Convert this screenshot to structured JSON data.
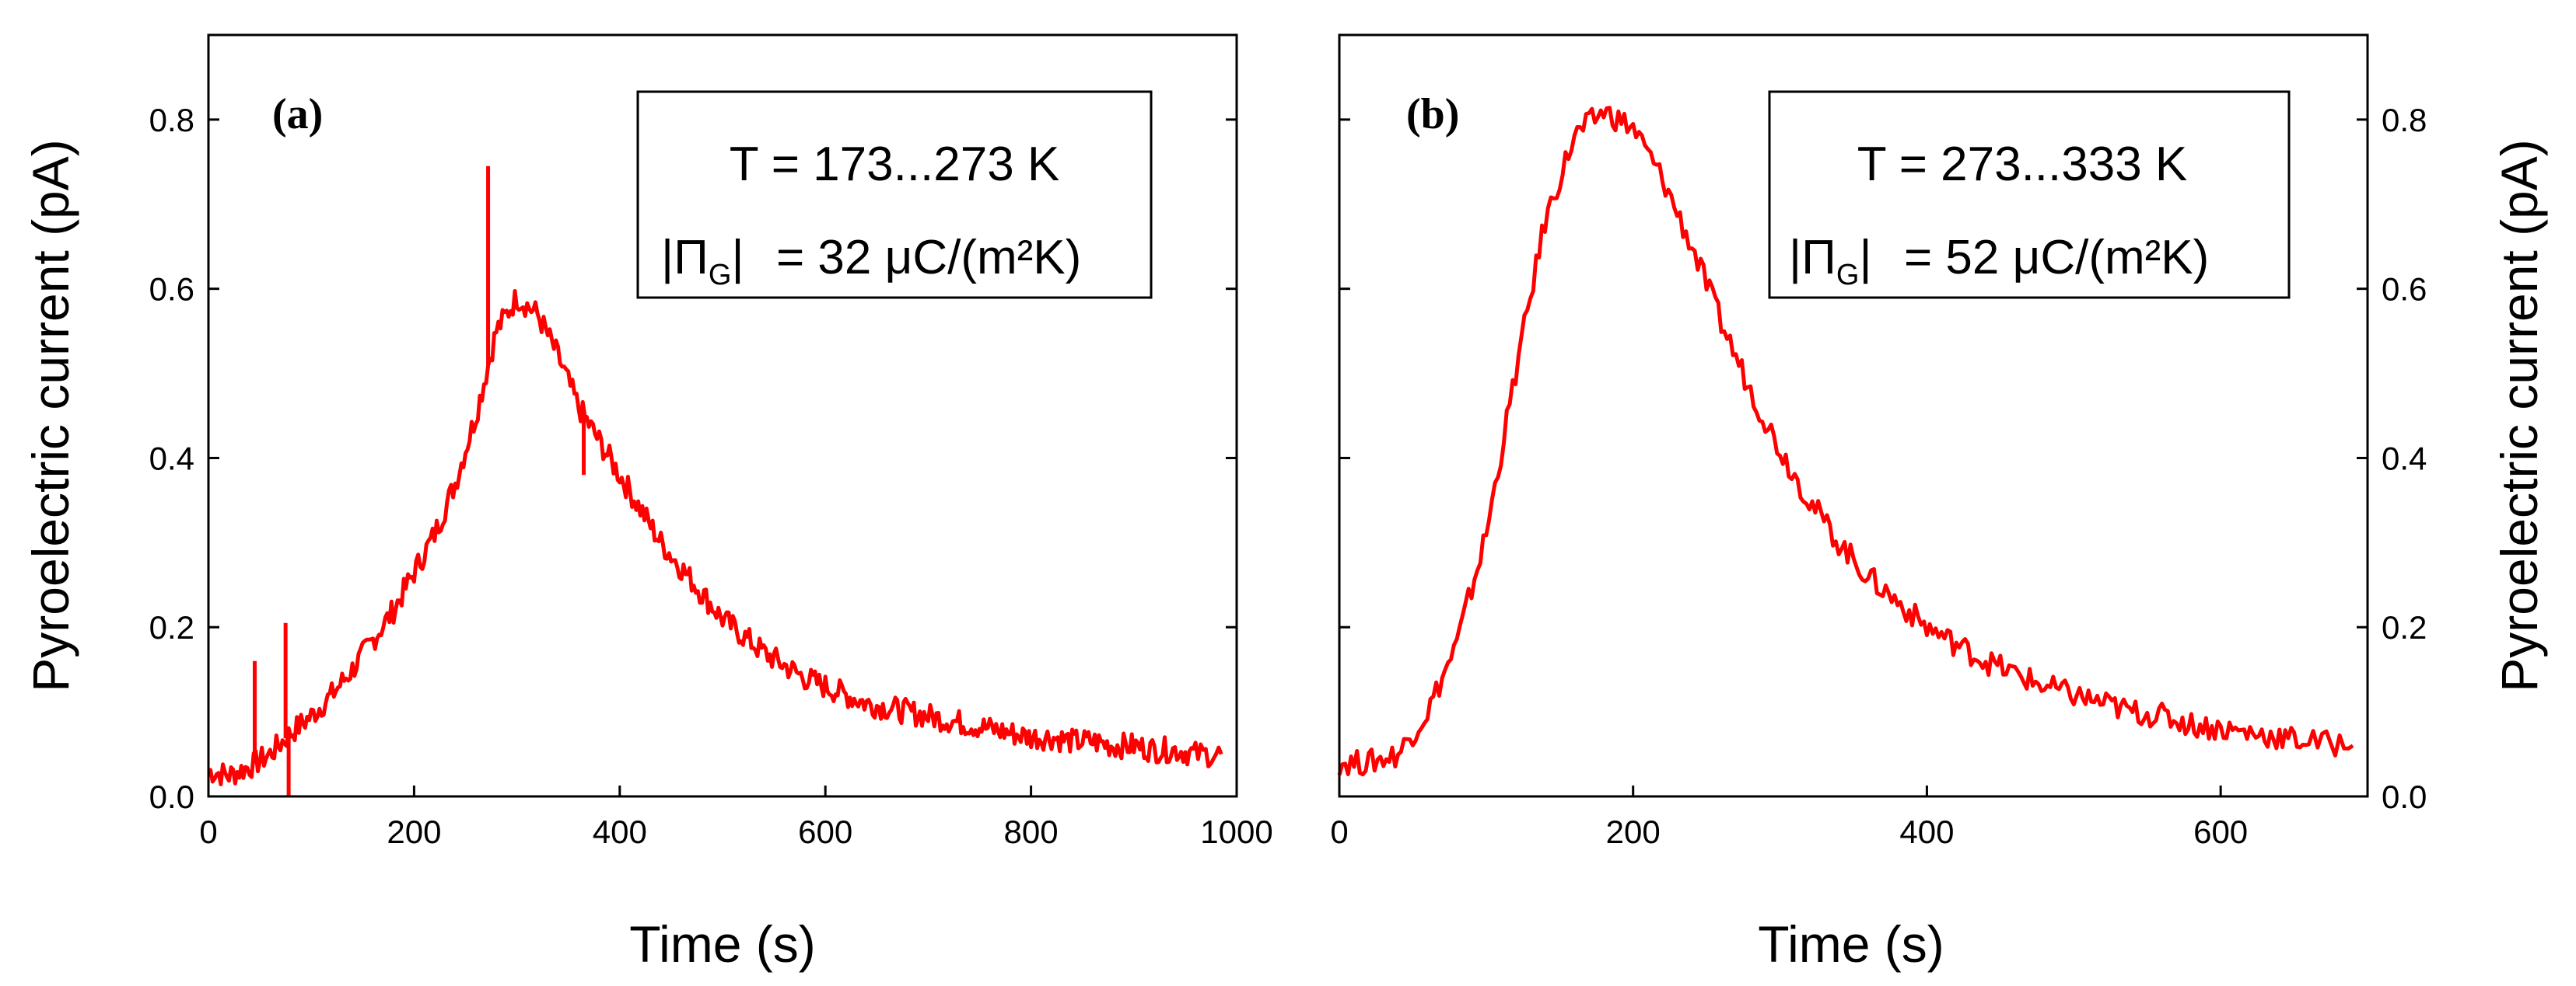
{
  "chart_data": [
    {
      "type": "line",
      "panel_label": "(a)",
      "xlabel": "Time (s)",
      "ylabel": "Pyroelectric current (pA)",
      "xlim": [
        0,
        1000
      ],
      "ylim": [
        0,
        0.9
      ],
      "xticks": [
        0,
        200,
        400,
        600,
        800,
        1000
      ],
      "yticks": [
        0.0,
        0.2,
        0.4,
        0.6,
        0.8
      ],
      "ytick_labels": [
        "0.0",
        "0.2",
        "0.4",
        "0.6",
        "0.8"
      ],
      "ylabel_side": "left",
      "color": "#ff0000",
      "annotation": {
        "line1": "T = 173...273 K",
        "line2_value": "= 32 μC/(m²K)"
      },
      "series": [
        {
          "name": "Pyroelectric current",
          "x": [
            0,
            20,
            40,
            60,
            80,
            100,
            120,
            140,
            160,
            180,
            200,
            220,
            240,
            260,
            280,
            300,
            320,
            340,
            360,
            380,
            400,
            420,
            440,
            460,
            480,
            500,
            520,
            540,
            560,
            580,
            600,
            620,
            640,
            660,
            680,
            700,
            720,
            740,
            760,
            780,
            800,
            820,
            840,
            860,
            880,
            900,
            920,
            940,
            960,
            985
          ],
          "y": [
            0.03,
            0.025,
            0.035,
            0.05,
            0.075,
            0.095,
            0.12,
            0.15,
            0.185,
            0.22,
            0.265,
            0.31,
            0.37,
            0.45,
            0.55,
            0.59,
            0.57,
            0.52,
            0.46,
            0.42,
            0.38,
            0.34,
            0.3,
            0.27,
            0.24,
            0.21,
            0.19,
            0.17,
            0.155,
            0.14,
            0.13,
            0.12,
            0.11,
            0.105,
            0.1,
            0.095,
            0.09,
            0.085,
            0.08,
            0.075,
            0.07,
            0.07,
            0.065,
            0.065,
            0.06,
            0.06,
            0.055,
            0.055,
            0.05,
            0.05
          ]
        }
      ],
      "spikes": [
        {
          "x": 45,
          "y": 0.16
        },
        {
          "x": 75,
          "y": 0.205
        },
        {
          "x": 78,
          "y": 0.0
        },
        {
          "x": 272,
          "y": 0.745
        },
        {
          "x": 365,
          "y": 0.38
        }
      ]
    },
    {
      "type": "line",
      "panel_label": "(b)",
      "xlabel": "Time (s)",
      "ylabel": "Pyroelectric current (pA)",
      "xlim": [
        0,
        700
      ],
      "ylim": [
        0,
        0.9
      ],
      "xticks": [
        0,
        200,
        400,
        600
      ],
      "yticks": [
        0.0,
        0.2,
        0.4,
        0.6,
        0.8
      ],
      "ytick_labels": [
        "0.0",
        "0.2",
        "0.4",
        "0.6",
        "0.8"
      ],
      "ylabel_side": "right",
      "color": "#ff0000",
      "annotation": {
        "line1": "T = 273...333 K",
        "line2_value": "= 52 μC/(m²K)"
      },
      "series": [
        {
          "name": "Pyroelectric current",
          "x": [
            0,
            20,
            40,
            60,
            80,
            100,
            120,
            140,
            160,
            180,
            200,
            220,
            240,
            260,
            280,
            300,
            320,
            340,
            360,
            380,
            400,
            420,
            440,
            460,
            480,
            500,
            520,
            540,
            560,
            580,
            600,
            620,
            640,
            660,
            690
          ],
          "y": [
            0.04,
            0.04,
            0.05,
            0.1,
            0.18,
            0.31,
            0.5,
            0.68,
            0.78,
            0.81,
            0.79,
            0.73,
            0.65,
            0.56,
            0.48,
            0.41,
            0.35,
            0.3,
            0.26,
            0.23,
            0.2,
            0.18,
            0.16,
            0.145,
            0.13,
            0.12,
            0.11,
            0.1,
            0.095,
            0.085,
            0.08,
            0.075,
            0.07,
            0.065,
            0.06
          ]
        }
      ],
      "spikes": []
    }
  ]
}
